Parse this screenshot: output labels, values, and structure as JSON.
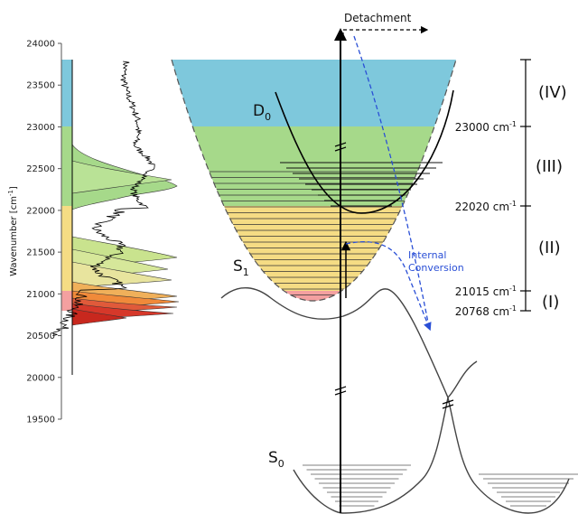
{
  "spectrum": {
    "y_axis_label": "Wavenumber [cm",
    "y_axis_label_sup": "-1",
    "y_axis_label_end": "]",
    "yticks": [
      19500,
      20000,
      20500,
      21000,
      21500,
      22000,
      22500,
      23000,
      23500,
      24000
    ],
    "ylim": [
      19500,
      24000
    ]
  },
  "labels": {
    "detachment": "Detachment",
    "d0": "D",
    "d0_sub": "0",
    "s1": "S",
    "s1_sub": "1",
    "s0": "S",
    "s0_sub": "0",
    "internal_conversion_1": "Internal",
    "internal_conversion_2": "Conversion"
  },
  "levels": [
    {
      "value": "23000 cm",
      "sup": "-1"
    },
    {
      "value": "22020 cm",
      "sup": "-1"
    },
    {
      "value": "21015 cm",
      "sup": "-1"
    },
    {
      "value": "20768 cm",
      "sup": "-1"
    }
  ],
  "regions": [
    {
      "label": "(IV)",
      "color": "#7ec8dc"
    },
    {
      "label": "(III)",
      "color": "#a6d98a"
    },
    {
      "label": "(II)",
      "color": "#f5dc84"
    },
    {
      "label": "(I)",
      "color": "#f4a0a0"
    }
  ],
  "colors": {
    "arrow_blue": "#2a4fd6",
    "peak_red": "#d6382a",
    "peak_orange": "#f08a3a"
  }
}
